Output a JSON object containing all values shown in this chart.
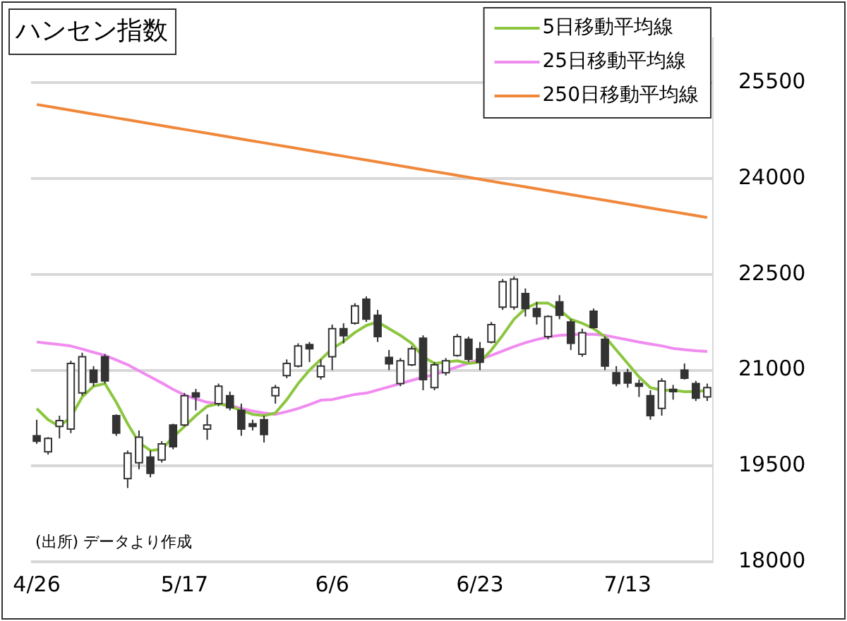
{
  "chart_data": {
    "type": "candlestick",
    "title": "ハンセン指数",
    "categories": [
      "4/26",
      null,
      null,
      null,
      null,
      null,
      null,
      null,
      null,
      null,
      null,
      null,
      null,
      "5/17",
      null,
      null,
      null,
      null,
      null,
      null,
      null,
      null,
      null,
      null,
      null,
      null,
      "6/6",
      null,
      null,
      null,
      null,
      null,
      null,
      null,
      null,
      null,
      null,
      null,
      null,
      "6/23",
      null,
      null,
      null,
      null,
      null,
      null,
      null,
      null,
      null,
      null,
      null,
      null,
      "7/13",
      null,
      null,
      null,
      null,
      null,
      null,
      null
    ],
    "ohlc": [
      [
        19972,
        20224,
        19846,
        19888
      ],
      [
        19720,
        19951,
        19678,
        19930
      ],
      [
        20120,
        20287,
        19930,
        20210
      ],
      [
        20077,
        21147,
        20014,
        21105
      ],
      [
        20644,
        21273,
        20601,
        21210
      ],
      [
        21000,
        21063,
        20749,
        20810
      ],
      [
        21210,
        21252,
        20790,
        20833
      ],
      [
        20287,
        20308,
        19972,
        20014
      ],
      [
        19300,
        19741,
        19154,
        19700
      ],
      [
        19550,
        20056,
        19448,
        19950
      ],
      [
        19637,
        19741,
        19322,
        19385
      ],
      [
        19595,
        19888,
        19553,
        19846
      ],
      [
        20140,
        20161,
        19762,
        19800
      ],
      [
        20140,
        20643,
        20119,
        20600
      ],
      [
        20643,
        20706,
        20370,
        20580
      ],
      [
        20077,
        20308,
        19909,
        20140
      ],
      [
        20475,
        20790,
        20434,
        20749
      ],
      [
        20601,
        20664,
        20370,
        20412
      ],
      [
        20370,
        20476,
        19972,
        20077
      ],
      [
        20161,
        20224,
        20056,
        20119
      ],
      [
        20224,
        20287,
        19867,
        19993
      ],
      [
        20601,
        20769,
        20476,
        20727
      ],
      [
        20916,
        21168,
        20874,
        21105
      ],
      [
        21063,
        21420,
        21042,
        21378
      ],
      [
        21400,
        21441,
        21126,
        21336
      ],
      [
        20895,
        21168,
        20853,
        21063
      ],
      [
        21210,
        21714,
        21000,
        21650
      ],
      [
        21650,
        21735,
        21420,
        21540
      ],
      [
        21735,
        22049,
        21714,
        22007
      ],
      [
        22112,
        22154,
        21755,
        21800
      ],
      [
        21860,
        21944,
        21441,
        21525
      ],
      [
        21200,
        21315,
        21000,
        21100
      ],
      [
        20790,
        21189,
        20748,
        21147
      ],
      [
        21084,
        21378,
        21063,
        21336
      ],
      [
        21500,
        21545,
        20685,
        20850
      ],
      [
        20727,
        21126,
        20685,
        21084
      ],
      [
        20958,
        21189,
        20916,
        21147
      ],
      [
        21231,
        21566,
        21210,
        21525
      ],
      [
        21483,
        21525,
        21126,
        21168
      ],
      [
        21336,
        21441,
        21000,
        21126
      ],
      [
        21441,
        21755,
        21420,
        21714
      ],
      [
        21986,
        22427,
        21944,
        22385
      ],
      [
        21986,
        22469,
        21944,
        22427
      ],
      [
        22200,
        22280,
        21840,
        21965
      ],
      [
        21965,
        22070,
        21714,
        21840
      ],
      [
        21525,
        21860,
        21483,
        21840
      ],
      [
        22070,
        22175,
        21797,
        21860
      ],
      [
        21755,
        21797,
        21315,
        21420
      ],
      [
        21250,
        21650,
        21210,
        21587
      ],
      [
        21923,
        21965,
        21650,
        21670
      ],
      [
        21483,
        21525,
        21000,
        21063
      ],
      [
        20958,
        21063,
        20748,
        20790
      ],
      [
        20958,
        21021,
        20727,
        20800
      ],
      [
        20790,
        20853,
        20580,
        20750
      ],
      [
        20600,
        20685,
        20224,
        20287
      ],
      [
        20400,
        20874,
        20287,
        20830
      ],
      [
        20700,
        20769,
        20538,
        20664
      ],
      [
        21000,
        21105,
        20853,
        20874
      ],
      [
        20790,
        20832,
        20517,
        20560
      ],
      [
        20580,
        20790,
        20517,
        20727
      ]
    ],
    "series": [
      {
        "name": "5日移動平均線",
        "type": "line",
        "color": "#8cc63f",
        "values": [
          20398,
          20224,
          20119,
          20266,
          20580,
          20748,
          20790,
          20497,
          20161,
          19867,
          19741,
          19762,
          19951,
          20119,
          20287,
          20434,
          20476,
          20434,
          20370,
          20308,
          20287,
          20329,
          20538,
          20790,
          21000,
          21168,
          21336,
          21450,
          21590,
          21700,
          21755,
          21650,
          21545,
          21420,
          21210,
          21105,
          21126,
          21147,
          21105,
          21126,
          21315,
          21545,
          21797,
          21965,
          22049,
          22049,
          21944,
          21797,
          21735,
          21650,
          21525,
          21315,
          21105,
          20895,
          20727,
          20685,
          20685,
          20664,
          20664,
          20685
        ]
      },
      {
        "name": "25日移動平均線",
        "type": "line",
        "color": "#f08cf0",
        "values": [
          21441,
          21420,
          21400,
          21378,
          21330,
          21280,
          21231,
          21160,
          21085,
          20990,
          20895,
          20800,
          20700,
          20610,
          20550,
          20497,
          20475,
          20450,
          20400,
          20360,
          20330,
          20308,
          20350,
          20400,
          20460,
          20530,
          20540,
          20580,
          20620,
          20640,
          20690,
          20740,
          20790,
          20840,
          20890,
          20930,
          20990,
          21050,
          21110,
          21170,
          21230,
          21300,
          21370,
          21430,
          21480,
          21520,
          21545,
          21555,
          21565,
          21560,
          21545,
          21510,
          21475,
          21440,
          21410,
          21380,
          21340,
          21320,
          21305,
          21294
        ]
      },
      {
        "name": "250日移動平均線",
        "type": "line",
        "color": "#f0883c",
        "values": [
          25160,
          25130,
          25100,
          25070,
          25040,
          25010,
          24980,
          24950,
          24920,
          24890,
          24860,
          24830,
          24800,
          24770,
          24740,
          24710,
          24680,
          24650,
          24620,
          24590,
          24560,
          24530,
          24500,
          24470,
          24440,
          24410,
          24380,
          24350,
          24320,
          24290,
          24260,
          24230,
          24200,
          24170,
          24140,
          24110,
          24080,
          24050,
          24020,
          23990,
          23960,
          23930,
          23900,
          23870,
          23840,
          23810,
          23780,
          23750,
          23720,
          23690,
          23660,
          23630,
          23600,
          23570,
          23540,
          23510,
          23480,
          23450,
          23420,
          23390
        ]
      }
    ],
    "ylim": [
      18000,
      26200
    ],
    "yticks": [
      18000,
      19500,
      21000,
      22500,
      24000,
      25500
    ],
    "grid": "y",
    "legend": "top right",
    "marker": "none",
    "annotations": [
      "(出所) データより作成"
    ]
  }
}
